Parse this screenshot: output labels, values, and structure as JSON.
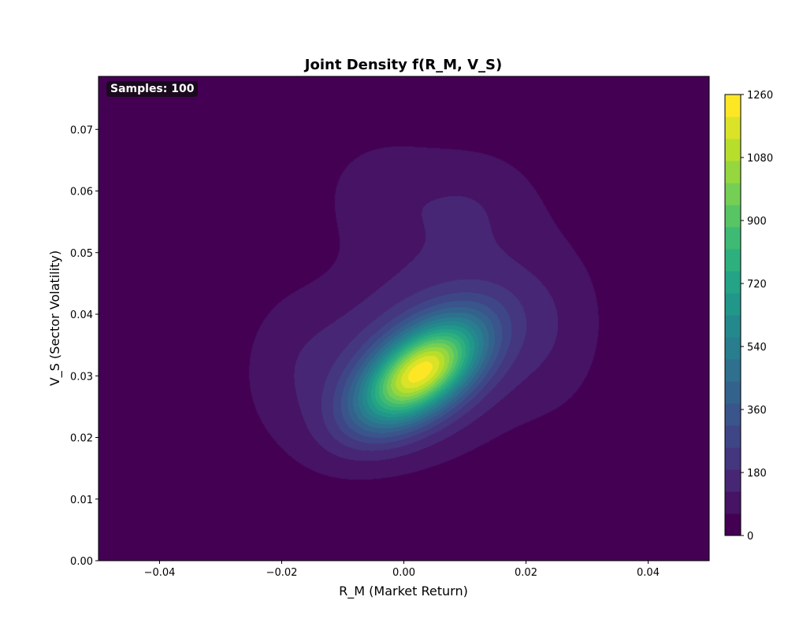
{
  "chart_data": {
    "type": "heatmap",
    "subtype": "filled-contour",
    "title": "Joint Density f(R_M, V_S)",
    "xlabel": "R_M (Market Return)",
    "ylabel": "V_S (Sector Volatility)",
    "xlim": [
      -0.05,
      0.05
    ],
    "ylim": [
      0.0,
      0.0786
    ],
    "xticks": [
      "−0.04",
      "−0.02",
      "0.00",
      "0.02",
      "0.04"
    ],
    "xtick_values": [
      -0.04,
      -0.02,
      0.0,
      0.02,
      0.04
    ],
    "yticks": [
      "0.00",
      "0.01",
      "0.02",
      "0.03",
      "0.04",
      "0.05",
      "0.06",
      "0.07"
    ],
    "ytick_values": [
      0,
      0.01,
      0.02,
      0.03,
      0.04,
      0.05,
      0.06,
      0.07
    ],
    "colorbar": {
      "min": 0,
      "max": 1260,
      "levels": 20,
      "ticks": [
        "0",
        "180",
        "360",
        "540",
        "720",
        "900",
        "1080",
        "1260"
      ],
      "tick_values": [
        0,
        180,
        360,
        540,
        720,
        900,
        1080,
        1260
      ],
      "colormap": "viridis"
    },
    "peak": {
      "x": 0.002,
      "y": 0.03,
      "density": 1260
    },
    "components": [
      {
        "mx": 0.0025,
        "my": 0.0305,
        "sx": 0.0068,
        "sy": 0.0058,
        "rho": 0.55,
        "amp": 1020
      },
      {
        "mx": 0.004,
        "my": 0.034,
        "sx": 0.0145,
        "sy": 0.012,
        "rho": 0.3,
        "amp": 230
      },
      {
        "mx": -0.004,
        "my": 0.06,
        "sx": 0.008,
        "sy": 0.0075,
        "rho": 0.0,
        "amp": 85
      },
      {
        "mx": 0.012,
        "my": 0.059,
        "sx": 0.008,
        "sy": 0.007,
        "rho": 0.0,
        "amp": 85
      },
      {
        "mx": -0.019,
        "my": 0.033,
        "sx": 0.007,
        "sy": 0.01,
        "rho": 0.0,
        "amp": 55
      },
      {
        "mx": 0.026,
        "my": 0.036,
        "sx": 0.006,
        "sy": 0.011,
        "rho": 0.0,
        "amp": 45
      }
    ],
    "annotation": "Samples: 100"
  }
}
